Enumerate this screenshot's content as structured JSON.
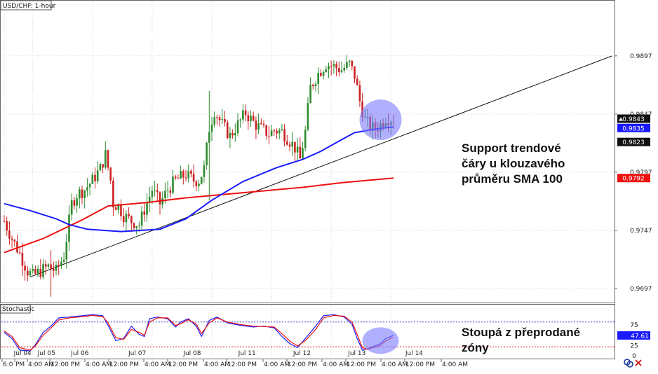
{
  "chart_data": [
    {
      "type": "candlestick",
      "title": "USD/CHF: 1-hour",
      "ylim": [
        0.9685,
        0.9945
      ],
      "y_ticks": [
        0.9697,
        0.9747,
        0.9797,
        0.9847,
        0.9897
      ],
      "y_tick_labels": [
        "0.9697",
        "0.9747",
        "0.9797",
        "0.9847",
        "0.9897"
      ],
      "date_labels": [
        "Jul 04",
        "Jul 05",
        "Jul 06",
        "Jul 07",
        "Jul 08",
        "Jul 11",
        "Jul 12",
        "Jul 13",
        "Jul 14"
      ],
      "time_labels": [
        "6:0",
        "PM",
        "4:00 AM",
        "12:00 PM",
        "4:00 AM",
        "12:00 PM",
        "4:00 AM",
        "12:00 PM",
        "4:00 AM",
        "12:00 PM",
        "4:00 AM",
        "12:00 PM",
        "4:00 AM",
        "12:00 PM",
        "4:00 AM",
        "12:00 PM",
        "4:00 AM"
      ],
      "price_badges": [
        {
          "value": "0.9843",
          "color": "#111111",
          "text_color": "#ffffff"
        },
        {
          "value": "0.9835",
          "color": "#1a1aff",
          "text_color": "#ffffff"
        },
        {
          "value": "0.9823",
          "color": "#111111",
          "text_color": "#ffffff"
        },
        {
          "value": "0.9792",
          "color": "#ee1111",
          "text_color": "#ffffff"
        }
      ],
      "close_path": [
        [
          0,
          0.9755
        ],
        [
          3,
          0.974
        ],
        [
          6,
          0.9727
        ],
        [
          9,
          0.9712
        ],
        [
          11,
          0.9708
        ],
        [
          14,
          0.9712
        ],
        [
          17,
          0.9716
        ],
        [
          20,
          0.9712
        ],
        [
          23,
          0.9725
        ],
        [
          26,
          0.977
        ],
        [
          28,
          0.9778
        ],
        [
          31,
          0.9782
        ],
        [
          34,
          0.979
        ],
        [
          37,
          0.98
        ],
        [
          39,
          0.9812
        ],
        [
          41,
          0.979
        ],
        [
          42,
          0.977
        ],
        [
          44,
          0.9768
        ],
        [
          46,
          0.976
        ],
        [
          49,
          0.9755
        ],
        [
          52,
          0.9752
        ],
        [
          54,
          0.9765
        ],
        [
          57,
          0.9782
        ],
        [
          60,
          0.977
        ],
        [
          63,
          0.9782
        ],
        [
          66,
          0.979
        ],
        [
          70,
          0.9795
        ],
        [
          73,
          0.979
        ],
        [
          75,
          0.979
        ],
        [
          77,
          0.98
        ],
        [
          79,
          0.9835
        ],
        [
          81,
          0.985
        ],
        [
          84,
          0.9838
        ],
        [
          87,
          0.9828
        ],
        [
          90,
          0.9838
        ],
        [
          93,
          0.9848
        ],
        [
          96,
          0.984
        ],
        [
          99,
          0.9834
        ],
        [
          102,
          0.983
        ],
        [
          104,
          0.9833
        ],
        [
          107,
          0.9832
        ],
        [
          110,
          0.9824
        ],
        [
          112,
          0.9818
        ],
        [
          114,
          0.9808
        ],
        [
          116,
          0.9832
        ],
        [
          118,
          0.987
        ],
        [
          121,
          0.9882
        ],
        [
          124,
          0.989
        ],
        [
          127,
          0.9888
        ],
        [
          130,
          0.9885
        ],
        [
          133,
          0.989
        ],
        [
          135,
          0.988
        ],
        [
          137,
          0.9858
        ],
        [
          139,
          0.9842
        ],
        [
          141,
          0.9836
        ],
        [
          143,
          0.9834
        ],
        [
          145,
          0.9838
        ],
        [
          147,
          0.9844
        ],
        [
          149,
          0.9843
        ],
        [
          150,
          0.9843
        ]
      ],
      "spikes": [
        {
          "at": 79,
          "high": 0.9867,
          "low": 0.9773
        },
        {
          "at": 18,
          "high": 0.973,
          "low": 0.969
        }
      ],
      "sma_100": {
        "name": "SMA 100",
        "color": "#1a1aff",
        "points": [
          [
            0,
            0.977
          ],
          [
            10,
            0.9764
          ],
          [
            20,
            0.9757
          ],
          [
            25,
            0.9752
          ],
          [
            32,
            0.9748
          ],
          [
            45,
            0.9746
          ],
          [
            60,
            0.9748
          ],
          [
            70,
            0.9757
          ],
          [
            80,
            0.9773
          ],
          [
            92,
            0.9789
          ],
          [
            105,
            0.9801
          ],
          [
            115,
            0.9808
          ],
          [
            122,
            0.9815
          ],
          [
            130,
            0.9825
          ],
          [
            135,
            0.9831
          ],
          [
            140,
            0.9833
          ],
          [
            146,
            0.9835
          ],
          [
            150,
            0.9836
          ]
        ]
      },
      "sma_200": {
        "name": "SMA 200",
        "color": "#ee1111",
        "points": [
          [
            0,
            0.9728
          ],
          [
            15,
            0.974
          ],
          [
            30,
            0.9756
          ],
          [
            40,
            0.9768
          ],
          [
            55,
            0.9771
          ],
          [
            70,
            0.9775
          ],
          [
            85,
            0.9778
          ],
          [
            100,
            0.9781
          ],
          [
            115,
            0.9784
          ],
          [
            130,
            0.9788
          ],
          [
            140,
            0.979
          ],
          [
            150,
            0.9792
          ]
        ]
      },
      "trendline": {
        "color": "#111111",
        "points": [
          [
            10,
            0.9707
          ],
          [
            200,
            0.9868
          ]
        ]
      },
      "highlight": {
        "at": 145,
        "value": 0.9842,
        "color": "#7b7bff"
      },
      "annotations": [
        {
          "lines": [
            "Support trendové",
            "čáry u klouzavého",
            "průměru SMA 100"
          ]
        }
      ]
    },
    {
      "type": "line",
      "title": "Stochastic",
      "ylim": [
        0,
        100
      ],
      "y_ticks": [
        0,
        25,
        50,
        75
      ],
      "y_tick_labels": [
        "0",
        "25",
        "50",
        "75"
      ],
      "levels": [
        80,
        20
      ],
      "value_badge": {
        "value": "47.61",
        "color": "#1a1aff",
        "text_color": "#ffffff"
      },
      "series": [
        {
          "color": "#1a1aff",
          "points": [
            [
              0,
              55
            ],
            [
              3,
              40
            ],
            [
              6,
              12
            ],
            [
              10,
              10
            ],
            [
              12,
              25
            ],
            [
              15,
              55
            ],
            [
              18,
              70
            ],
            [
              21,
              90
            ],
            [
              25,
              92
            ],
            [
              30,
              95
            ],
            [
              34,
              98
            ],
            [
              38,
              95
            ],
            [
              40,
              72
            ],
            [
              43,
              35
            ],
            [
              46,
              40
            ],
            [
              49,
              70
            ],
            [
              52,
              50
            ],
            [
              54,
              45
            ],
            [
              56,
              88
            ],
            [
              59,
              92
            ],
            [
              63,
              88
            ],
            [
              66,
              68
            ],
            [
              68,
              80
            ],
            [
              71,
              88
            ],
            [
              74,
              70
            ],
            [
              76,
              45
            ],
            [
              79,
              84
            ],
            [
              82,
              92
            ],
            [
              86,
              78
            ],
            [
              91,
              72
            ],
            [
              96,
              68
            ],
            [
              100,
              70
            ],
            [
              104,
              66
            ],
            [
              107,
              45
            ],
            [
              110,
              28
            ],
            [
              113,
              18
            ],
            [
              116,
              40
            ],
            [
              120,
              70
            ],
            [
              123,
              95
            ],
            [
              127,
              98
            ],
            [
              131,
              92
            ],
            [
              134,
              75
            ],
            [
              136,
              40
            ],
            [
              138,
              12
            ],
            [
              140,
              15
            ],
            [
              142,
              20
            ],
            [
              145,
              28
            ],
            [
              147,
              40
            ],
            [
              150,
              48
            ]
          ]
        },
        {
          "color": "#ee1111",
          "points": [
            [
              0,
              58
            ],
            [
              3,
              45
            ],
            [
              6,
              18
            ],
            [
              10,
              12
            ],
            [
              12,
              22
            ],
            [
              15,
              48
            ],
            [
              18,
              65
            ],
            [
              21,
              85
            ],
            [
              25,
              90
            ],
            [
              30,
              93
            ],
            [
              34,
              96
            ],
            [
              38,
              93
            ],
            [
              40,
              78
            ],
            [
              43,
              42
            ],
            [
              46,
              38
            ],
            [
              49,
              62
            ],
            [
              52,
              55
            ],
            [
              54,
              48
            ],
            [
              56,
              80
            ],
            [
              59,
              90
            ],
            [
              63,
              90
            ],
            [
              66,
              72
            ],
            [
              68,
              76
            ],
            [
              71,
              86
            ],
            [
              74,
              75
            ],
            [
              76,
              52
            ],
            [
              79,
              78
            ],
            [
              82,
              90
            ],
            [
              86,
              80
            ],
            [
              91,
              74
            ],
            [
              96,
              70
            ],
            [
              100,
              69
            ],
            [
              104,
              68
            ],
            [
              107,
              52
            ],
            [
              110,
              34
            ],
            [
              113,
              22
            ],
            [
              116,
              35
            ],
            [
              120,
              62
            ],
            [
              123,
              90
            ],
            [
              127,
              96
            ],
            [
              131,
              94
            ],
            [
              134,
              80
            ],
            [
              136,
              50
            ],
            [
              138,
              18
            ],
            [
              140,
              14
            ],
            [
              142,
              18
            ],
            [
              145,
              24
            ],
            [
              147,
              34
            ],
            [
              150,
              44
            ]
          ]
        }
      ],
      "highlight": {
        "at": 145,
        "value": 35,
        "color": "#7b7bff"
      },
      "annotations": [
        {
          "lines": [
            "Stoupá z přeprodané",
            "zóny"
          ]
        }
      ]
    }
  ],
  "icons": [
    "sync-icon",
    "close-icon"
  ]
}
